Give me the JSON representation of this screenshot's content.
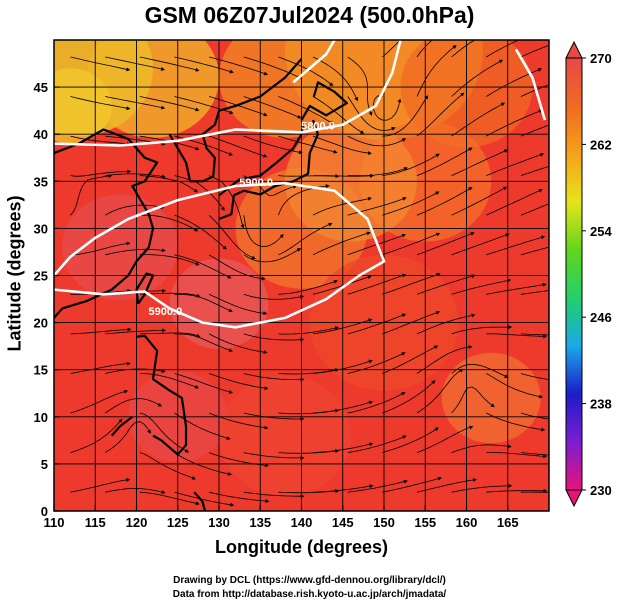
{
  "title": "GSM 06Z07Jul2024 (500.0hPa)",
  "xlabel": "Longitude (degrees)",
  "ylabel": "Latitude  (degrees)",
  "credit_line1": "Drawing by DCL (https://www.gfd-dennou.org/library/dcl/)",
  "credit_line2": "Data from http://database.rish.kyoto-u.ac.jp/arch/jmadata/",
  "chart_data": {
    "type": "heatmap",
    "x_ticks": [
      110,
      115,
      120,
      125,
      130,
      135,
      140,
      145,
      150,
      155,
      160,
      165
    ],
    "y_ticks": [
      0,
      5,
      10,
      15,
      20,
      25,
      30,
      35,
      40,
      45
    ],
    "xlim": [
      110,
      170
    ],
    "ylim": [
      0,
      50
    ],
    "colorbar": {
      "ticks": [
        270,
        262,
        254,
        246,
        238,
        230
      ],
      "range": [
        230,
        270
      ],
      "colors": [
        "#e8127a",
        "#7a1fd0",
        "#1c1cc8",
        "#1aa8e8",
        "#22d06a",
        "#62d61c",
        "#e6e41a",
        "#f5a21a",
        "#f06a22",
        "#e84848"
      ]
    },
    "contour_labels": [
      {
        "text": "5800.0",
        "lon": 142,
        "lat": 40.5
      },
      {
        "text": "5900.0",
        "lon": 134.5,
        "lat": 34.5
      },
      {
        "text": "5900.0",
        "lon": 123.5,
        "lat": 20.8
      }
    ]
  }
}
